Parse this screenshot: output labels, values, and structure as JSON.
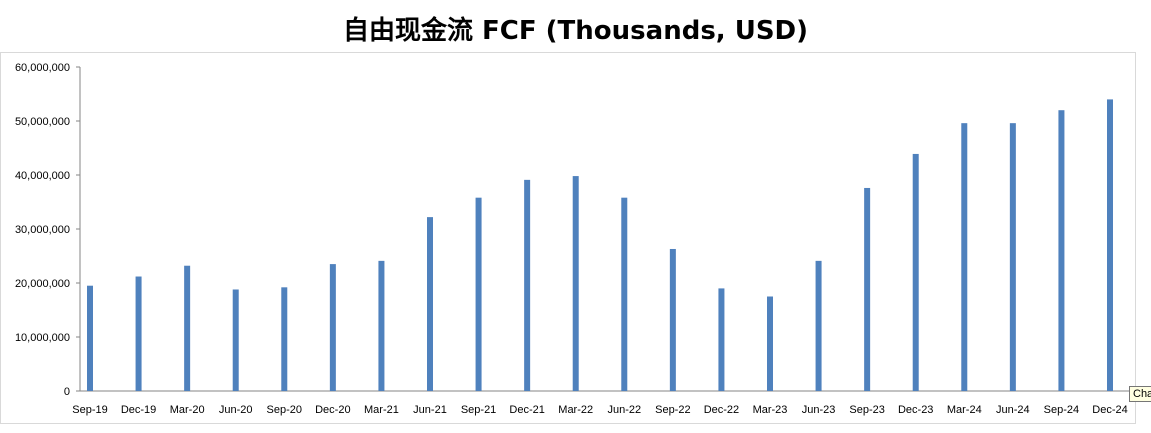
{
  "chart_data": {
    "type": "bar",
    "title": "自由现金流 FCF (Thousands, USD)",
    "xlabel": "",
    "ylabel": "",
    "ylim": [
      0,
      60000000
    ],
    "yticks": [
      "0",
      "10,000,000",
      "20,000,000",
      "30,000,000",
      "40,000,000",
      "50,000,000",
      "60,000,000"
    ],
    "grid": false,
    "bar_color": "#4f81bd",
    "categories": [
      "Sep-19",
      "Dec-19",
      "Mar-20",
      "Jun-20",
      "Sep-20",
      "Dec-20",
      "Mar-21",
      "Jun-21",
      "Sep-21",
      "Dec-21",
      "Mar-22",
      "Jun-22",
      "Sep-22",
      "Dec-22",
      "Mar-23",
      "Jun-23",
      "Sep-23",
      "Dec-23",
      "Mar-24",
      "Jun-24",
      "Sep-24",
      "Dec-24"
    ],
    "values": [
      19500000,
      21200000,
      23200000,
      18800000,
      19200000,
      23500000,
      24100000,
      32200000,
      35800000,
      39100000,
      39800000,
      35800000,
      26300000,
      19000000,
      17500000,
      24100000,
      37600000,
      43900000,
      49600000,
      49600000,
      52000000,
      54000000
    ]
  },
  "tooltip": {
    "text": "Cha"
  }
}
